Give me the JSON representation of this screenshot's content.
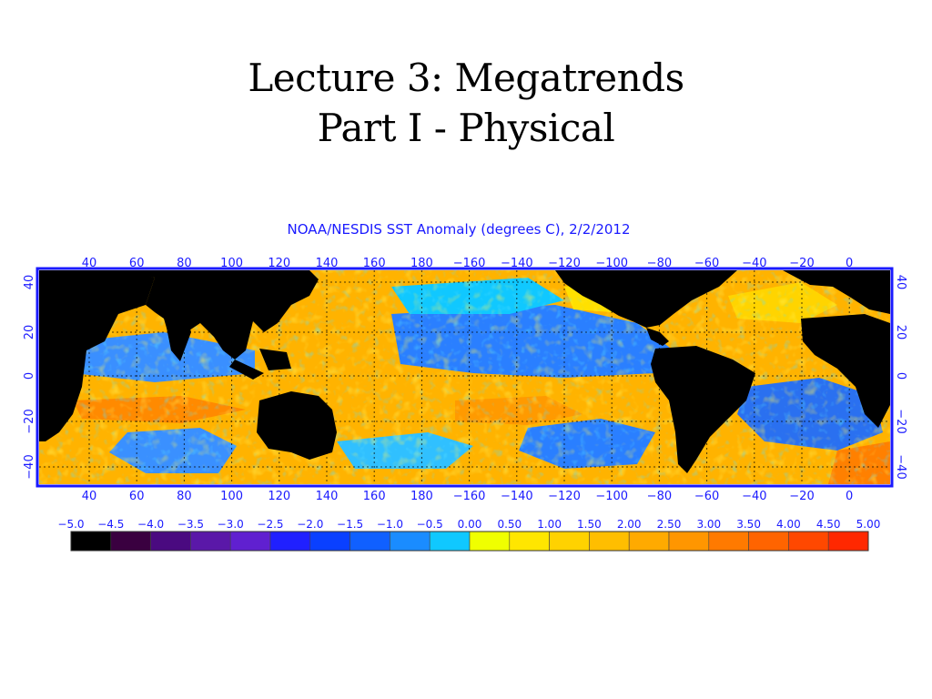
{
  "slide": {
    "title_line1": "Lecture 3: Megatrends",
    "title_line2": "Part I - Physical"
  },
  "figure": {
    "title": "NOAA/NESDIS SST Anomaly (degrees C), 2/2/2012",
    "lon_labels": [
      "40",
      "60",
      "80",
      "100",
      "120",
      "140",
      "160",
      "180",
      "−160",
      "−140",
      "−120",
      "−100",
      "−80",
      "−60",
      "−40",
      "−20",
      "0"
    ],
    "lat_labels": [
      "40",
      "20",
      "0",
      "−20",
      "−40"
    ],
    "colorbar": {
      "tick_labels": [
        "−5.0",
        "−4.5",
        "−4.0",
        "−3.5",
        "−3.0",
        "−2.5",
        "−2.0",
        "−1.5",
        "−1.0",
        "−0.5",
        "0.00",
        "0.50",
        "1.00",
        "1.50",
        "2.00",
        "2.50",
        "3.00",
        "3.50",
        "4.00",
        "4.50",
        "5.00"
      ],
      "colors": [
        "#000000",
        "#3a0040",
        "#4a0a80",
        "#5a18a8",
        "#6020d0",
        "#2020ff",
        "#0a40ff",
        "#1060ff",
        "#1a8cff",
        "#10c8ff",
        "#f0ff00",
        "#ffe600",
        "#ffd200",
        "#ffbe00",
        "#ffaa00",
        "#ff9600",
        "#ff7a00",
        "#ff6400",
        "#ff4800",
        "#ff2800"
      ]
    },
    "colors": {
      "text": "#1a1aff",
      "frame": "#1a1aff",
      "land": "#000000",
      "ocean_warm": "#ffa500",
      "ocean_cool": "#2a7fff"
    }
  }
}
